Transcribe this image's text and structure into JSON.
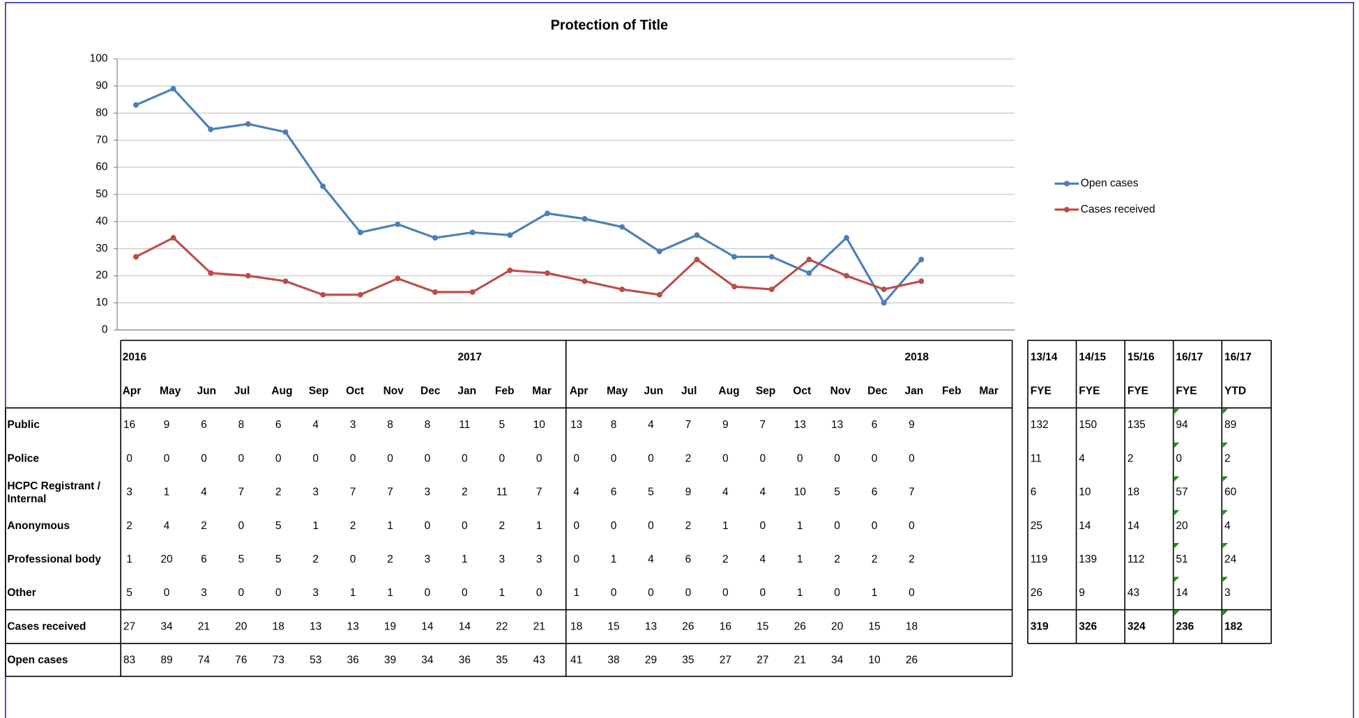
{
  "chart_data": {
    "type": "line",
    "title": "Protection of Title",
    "categories": [
      "Apr",
      "May",
      "Jun",
      "Jul",
      "Aug",
      "Sep",
      "Oct",
      "Nov",
      "Dec",
      "Jan",
      "Feb",
      "Mar",
      "Apr",
      "May",
      "Jun",
      "Jul",
      "Aug",
      "Sep",
      "Oct",
      "Nov",
      "Dec",
      "Jan",
      "Feb",
      "Mar"
    ],
    "series": [
      {
        "name": "Open cases",
        "color": "#4a7ebb",
        "values": [
          83,
          89,
          74,
          76,
          73,
          53,
          36,
          39,
          34,
          36,
          35,
          43,
          41,
          38,
          29,
          35,
          27,
          27,
          21,
          34,
          10,
          26,
          null,
          null
        ]
      },
      {
        "name": "Cases received",
        "color": "#be4b48",
        "values": [
          27,
          34,
          21,
          20,
          18,
          13,
          13,
          19,
          14,
          14,
          22,
          21,
          18,
          15,
          13,
          26,
          16,
          15,
          26,
          20,
          15,
          18,
          null,
          null
        ]
      }
    ],
    "ylim": [
      0,
      100
    ],
    "yticks": [
      0,
      10,
      20,
      30,
      40,
      50,
      60,
      70,
      80,
      90,
      100
    ],
    "grid": true,
    "legend": "right"
  },
  "table": {
    "years": [
      {
        "label": "2016",
        "column": 0
      },
      {
        "label": "2017",
        "column": 9
      },
      {
        "label": "2018",
        "column": 21
      }
    ],
    "rows": [
      {
        "label": "Public",
        "values": [
          16,
          9,
          6,
          8,
          6,
          4,
          3,
          8,
          8,
          11,
          5,
          10,
          13,
          8,
          4,
          7,
          9,
          7,
          13,
          13,
          6,
          9
        ],
        "summary": [
          132,
          150,
          135,
          94,
          89
        ]
      },
      {
        "label": "Police",
        "values": [
          0,
          0,
          0,
          0,
          0,
          0,
          0,
          0,
          0,
          0,
          0,
          0,
          0,
          0,
          0,
          2,
          0,
          0,
          0,
          0,
          0,
          0
        ],
        "summary": [
          11,
          4,
          2,
          0,
          2
        ]
      },
      {
        "label": "HCPC Registrant / Internal",
        "values": [
          3,
          1,
          4,
          7,
          2,
          3,
          7,
          7,
          3,
          2,
          11,
          7,
          4,
          6,
          5,
          9,
          4,
          4,
          10,
          5,
          6,
          7
        ],
        "summary": [
          6,
          10,
          18,
          57,
          60
        ]
      },
      {
        "label": "Anonymous",
        "values": [
          2,
          4,
          2,
          0,
          5,
          1,
          2,
          1,
          0,
          0,
          2,
          1,
          0,
          0,
          0,
          2,
          1,
          0,
          1,
          0,
          0,
          0
        ],
        "summary": [
          25,
          14,
          14,
          20,
          4
        ]
      },
      {
        "label": "Professional body",
        "values": [
          1,
          20,
          6,
          5,
          5,
          2,
          0,
          2,
          3,
          1,
          3,
          3,
          0,
          1,
          4,
          6,
          2,
          4,
          1,
          2,
          2,
          2
        ],
        "summary": [
          119,
          139,
          112,
          51,
          24
        ]
      },
      {
        "label": "Other",
        "values": [
          5,
          0,
          3,
          0,
          0,
          3,
          1,
          1,
          0,
          0,
          1,
          0,
          1,
          0,
          0,
          0,
          0,
          0,
          1,
          0,
          1,
          0
        ],
        "summary": [
          26,
          9,
          43,
          14,
          3
        ]
      }
    ],
    "summary_headers": [
      {
        "period": "13/14",
        "kind": "FYE"
      },
      {
        "period": "14/15",
        "kind": "FYE"
      },
      {
        "period": "15/16",
        "kind": "FYE"
      },
      {
        "period": "16/17",
        "kind": "FYE"
      },
      {
        "period": "16/17",
        "kind": "YTD"
      }
    ],
    "summary_totals": [
      319,
      326,
      324,
      236,
      182
    ]
  }
}
